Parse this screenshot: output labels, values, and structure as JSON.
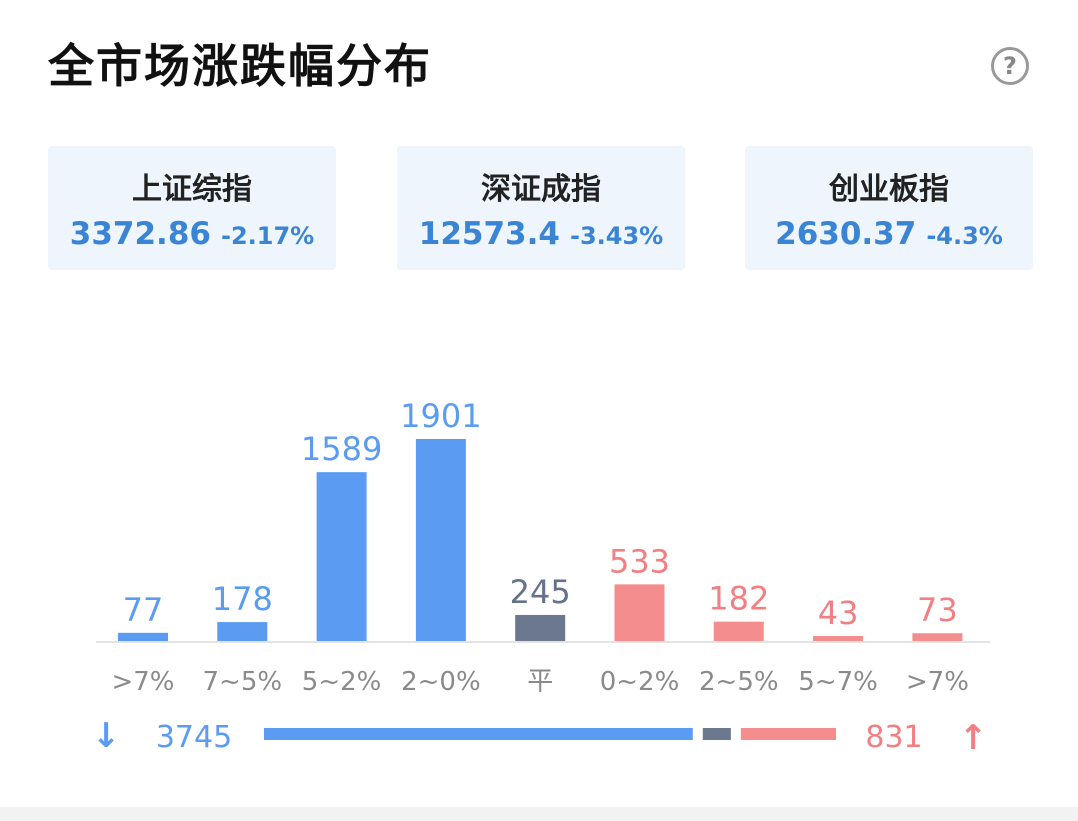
{
  "header": {
    "title": "全市场涨跌幅分布",
    "help_glyph": "?"
  },
  "indices": [
    {
      "name": "上证综指",
      "value": "3372.86",
      "change": "-2.17%"
    },
    {
      "name": "深证成指",
      "value": "12573.4",
      "change": "-3.43%"
    },
    {
      "name": "创业板指",
      "value": "2630.37",
      "change": "-4.3%"
    }
  ],
  "colors": {
    "down": "#5b9cf2",
    "flat": "#6b7890",
    "up": "#f48d8e",
    "down_text": "#5b9cf2",
    "flat_text": "#66728a",
    "up_text": "#f27f81"
  },
  "chart_data": {
    "type": "bar",
    "categories": [
      ">7%",
      "7~5%",
      "5~2%",
      "2~0%",
      "平",
      "0~2%",
      "2~5%",
      "5~7%",
      ">7%"
    ],
    "values": [
      77,
      178,
      1589,
      1901,
      245,
      533,
      182,
      43,
      73
    ],
    "groups": [
      "down",
      "down",
      "down",
      "down",
      "flat",
      "up",
      "up",
      "up",
      "up"
    ],
    "ylim": [
      0,
      1901
    ]
  },
  "summary": {
    "down_count": "3745",
    "up_count": "831",
    "down_arrow": "↓",
    "up_arrow": "↑",
    "down_total": 3745,
    "flat_total": 245,
    "up_total": 831
  }
}
